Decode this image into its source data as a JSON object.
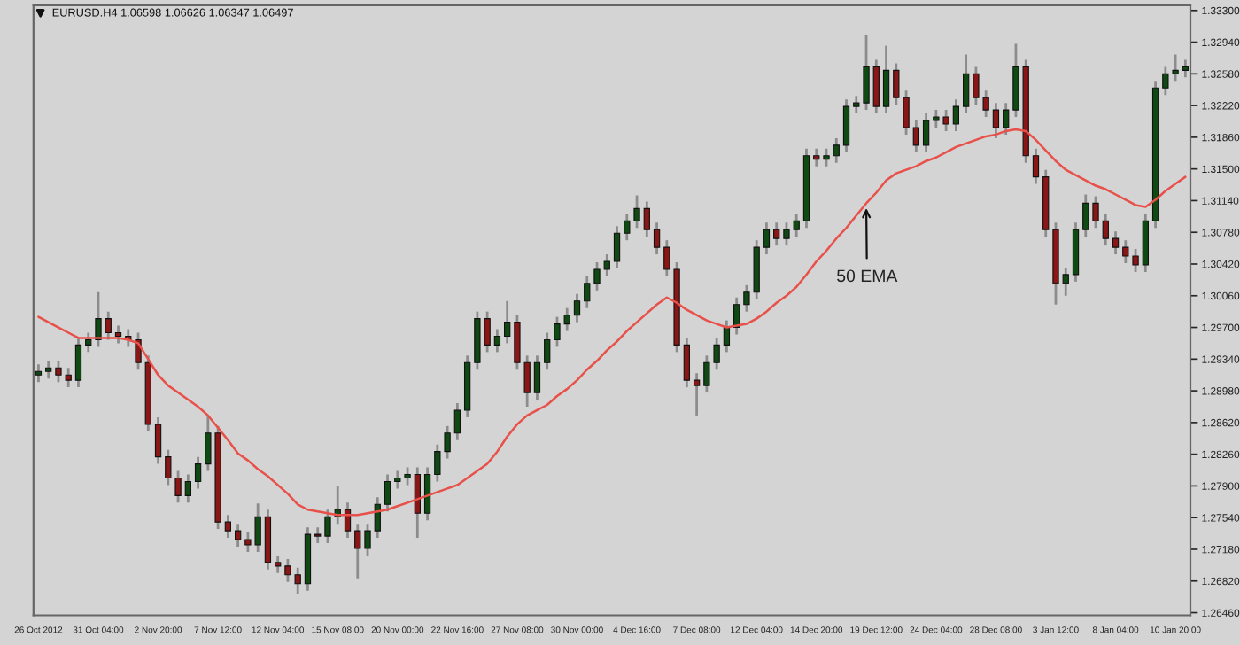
{
  "chart_data": {
    "type": "candlestick",
    "title": "EURUSD.H4 1.06598 1.06626 1.06347 1.06497",
    "categories": [
      "26 Oct 2012",
      null,
      null,
      null,
      null,
      null,
      "31 Oct 04:00",
      null,
      null,
      null,
      null,
      null,
      "2 Nov 20:00",
      null,
      null,
      null,
      null,
      null,
      "7 Nov 12:00",
      null,
      null,
      null,
      null,
      null,
      "12 Nov 04:00",
      null,
      null,
      null,
      null,
      null,
      "15 Nov 08:00",
      null,
      null,
      null,
      null,
      null,
      "20 Nov 00:00",
      null,
      null,
      null,
      null,
      null,
      "22 Nov 16:00",
      null,
      null,
      null,
      null,
      null,
      "27 Nov 08:00",
      null,
      null,
      null,
      null,
      null,
      "30 Nov 00:00",
      null,
      null,
      null,
      null,
      null,
      "4 Dec 16:00",
      null,
      null,
      null,
      null,
      null,
      "7 Dec 08:00",
      null,
      null,
      null,
      null,
      null,
      "12 Dec 04:00",
      null,
      null,
      null,
      null,
      null,
      "14 Dec 20:00",
      null,
      null,
      null,
      null,
      null,
      "19 Dec 12:00",
      null,
      null,
      null,
      null,
      null,
      "24 Dec 04:00",
      null,
      null,
      null,
      null,
      null,
      "28 Dec 08:00",
      null,
      null,
      null,
      null,
      null,
      "3 Jan 12:00",
      null,
      null,
      null,
      null,
      null,
      "8 Jan 04:00",
      null,
      null,
      null,
      null,
      null,
      "10 Jan 20:00",
      null
    ],
    "ohlc": [
      [
        1.2916,
        1.2928,
        1.2908,
        1.292
      ],
      [
        1.292,
        1.2932,
        1.2912,
        1.2924
      ],
      [
        1.2924,
        1.2932,
        1.2908,
        1.2916
      ],
      [
        1.2916,
        1.2924,
        1.2902,
        1.291
      ],
      [
        1.291,
        1.2958,
        1.2902,
        1.295
      ],
      [
        1.295,
        1.2964,
        1.2942,
        1.2956
      ],
      [
        1.2956,
        1.301,
        1.2948,
        1.298
      ],
      [
        1.298,
        1.2988,
        1.2956,
        1.2964
      ],
      [
        1.2964,
        1.2972,
        1.2952,
        1.296
      ],
      [
        1.296,
        1.2968,
        1.2948,
        1.2956
      ],
      [
        1.2956,
        1.2964,
        1.2922,
        1.293
      ],
      [
        1.293,
        1.2938,
        1.2852,
        1.286
      ],
      [
        1.286,
        1.2868,
        1.2815,
        1.2823
      ],
      [
        1.2823,
        1.2831,
        1.2791,
        1.2799
      ],
      [
        1.2799,
        1.2807,
        1.2771,
        1.2779
      ],
      [
        1.2779,
        1.2803,
        1.2771,
        1.2795
      ],
      [
        1.2795,
        1.2823,
        1.2787,
        1.2815
      ],
      [
        1.2815,
        1.287,
        1.2807,
        1.285
      ],
      [
        1.285,
        1.2858,
        1.2741,
        1.2749
      ],
      [
        1.2749,
        1.2757,
        1.2731,
        1.2739
      ],
      [
        1.2739,
        1.2747,
        1.2721,
        1.2729
      ],
      [
        1.2729,
        1.2737,
        1.2715,
        1.2723
      ],
      [
        1.2723,
        1.277,
        1.2715,
        1.2755
      ],
      [
        1.2755,
        1.2763,
        1.2695,
        1.2703
      ],
      [
        1.2703,
        1.2711,
        1.2691,
        1.2699
      ],
      [
        1.2699,
        1.2707,
        1.2681,
        1.2689
      ],
      [
        1.2689,
        1.2697,
        1.2667,
        1.2679
      ],
      [
        1.2679,
        1.2743,
        1.2671,
        1.2735
      ],
      [
        1.2735,
        1.2743,
        1.2725,
        1.2733
      ],
      [
        1.2733,
        1.2763,
        1.2725,
        1.2755
      ],
      [
        1.2755,
        1.279,
        1.2747,
        1.2763
      ],
      [
        1.2763,
        1.2771,
        1.2731,
        1.2739
      ],
      [
        1.2739,
        1.2747,
        1.2685,
        1.2719
      ],
      [
        1.2719,
        1.2747,
        1.2711,
        1.2739
      ],
      [
        1.2739,
        1.2777,
        1.2731,
        1.2769
      ],
      [
        1.2769,
        1.2803,
        1.2761,
        1.2795
      ],
      [
        1.2795,
        1.2807,
        1.2787,
        1.2799
      ],
      [
        1.2799,
        1.2811,
        1.2791,
        1.2803
      ],
      [
        1.2803,
        1.2811,
        1.2731,
        1.2759
      ],
      [
        1.2759,
        1.2811,
        1.2751,
        1.2803
      ],
      [
        1.2803,
        1.2837,
        1.2795,
        1.2829
      ],
      [
        1.2829,
        1.2858,
        1.2821,
        1.285
      ],
      [
        1.285,
        1.2884,
        1.2842,
        1.2876
      ],
      [
        1.2876,
        1.2938,
        1.2868,
        1.293
      ],
      [
        1.293,
        1.2988,
        1.2922,
        1.298
      ],
      [
        1.298,
        1.2988,
        1.2942,
        1.295
      ],
      [
        1.295,
        1.2968,
        1.2942,
        1.296
      ],
      [
        1.296,
        1.3,
        1.2952,
        1.2976
      ],
      [
        1.2976,
        1.2984,
        1.2922,
        1.293
      ],
      [
        1.293,
        1.2938,
        1.288,
        1.2896
      ],
      [
        1.2896,
        1.2938,
        1.2888,
        1.293
      ],
      [
        1.293,
        1.2964,
        1.2922,
        1.2956
      ],
      [
        1.2956,
        1.2982,
        1.2948,
        1.2974
      ],
      [
        1.2974,
        1.2992,
        1.2966,
        1.2984
      ],
      [
        1.2984,
        1.3008,
        1.2976,
        1.3
      ],
      [
        1.3,
        1.3028,
        1.2992,
        1.302
      ],
      [
        1.302,
        1.3044,
        1.3012,
        1.3036
      ],
      [
        1.3036,
        1.3053,
        1.3028,
        1.3045
      ],
      [
        1.3045,
        1.3085,
        1.3037,
        1.3077
      ],
      [
        1.3077,
        1.3099,
        1.3069,
        1.3091
      ],
      [
        1.3091,
        1.312,
        1.3083,
        1.3105
      ],
      [
        1.3105,
        1.3113,
        1.3073,
        1.3081
      ],
      [
        1.3081,
        1.3089,
        1.3053,
        1.3061
      ],
      [
        1.3061,
        1.3069,
        1.3028,
        1.3036
      ],
      [
        1.3036,
        1.3044,
        1.2942,
        1.295
      ],
      [
        1.295,
        1.2958,
        1.2902,
        1.291
      ],
      [
        1.291,
        1.2918,
        1.287,
        1.2904
      ],
      [
        1.2904,
        1.2938,
        1.2896,
        1.293
      ],
      [
        1.293,
        1.2958,
        1.2922,
        1.295
      ],
      [
        1.295,
        1.2978,
        1.2942,
        1.297
      ],
      [
        1.297,
        1.3004,
        1.2962,
        1.2996
      ],
      [
        1.2996,
        1.3018,
        1.2988,
        1.301
      ],
      [
        1.301,
        1.3069,
        1.3002,
        1.3061
      ],
      [
        1.3061,
        1.3089,
        1.3053,
        1.3081
      ],
      [
        1.3081,
        1.3089,
        1.3063,
        1.3071
      ],
      [
        1.3071,
        1.3089,
        1.3063,
        1.3081
      ],
      [
        1.3081,
        1.3099,
        1.3073,
        1.3091
      ],
      [
        1.3091,
        1.3173,
        1.3083,
        1.3165
      ],
      [
        1.3165,
        1.3173,
        1.3153,
        1.3161
      ],
      [
        1.3161,
        1.3173,
        1.3153,
        1.3165
      ],
      [
        1.3165,
        1.3185,
        1.3157,
        1.3177
      ],
      [
        1.3177,
        1.3229,
        1.3169,
        1.3221
      ],
      [
        1.3221,
        1.3233,
        1.3213,
        1.3225
      ],
      [
        1.3225,
        1.3302,
        1.3217,
        1.3266
      ],
      [
        1.3266,
        1.3274,
        1.3213,
        1.3221
      ],
      [
        1.3221,
        1.329,
        1.3213,
        1.3262
      ],
      [
        1.3262,
        1.327,
        1.3223,
        1.3231
      ],
      [
        1.3231,
        1.3239,
        1.3189,
        1.3197
      ],
      [
        1.3197,
        1.3205,
        1.3169,
        1.3177
      ],
      [
        1.3177,
        1.3213,
        1.3169,
        1.3205
      ],
      [
        1.3205,
        1.3217,
        1.3197,
        1.3209
      ],
      [
        1.3209,
        1.3217,
        1.3193,
        1.3201
      ],
      [
        1.3201,
        1.3229,
        1.3193,
        1.3221
      ],
      [
        1.3221,
        1.328,
        1.3213,
        1.3258
      ],
      [
        1.3258,
        1.3266,
        1.3223,
        1.3231
      ],
      [
        1.3231,
        1.3239,
        1.3209,
        1.3217
      ],
      [
        1.3217,
        1.3225,
        1.3185,
        1.3197
      ],
      [
        1.3197,
        1.3225,
        1.3189,
        1.3217
      ],
      [
        1.3217,
        1.3292,
        1.3209,
        1.3266
      ],
      [
        1.3266,
        1.3274,
        1.3157,
        1.3165
      ],
      [
        1.3165,
        1.3173,
        1.3133,
        1.3141
      ],
      [
        1.3141,
        1.3149,
        1.3073,
        1.3081
      ],
      [
        1.3081,
        1.3089,
        1.2996,
        1.302
      ],
      [
        1.302,
        1.3038,
        1.3006,
        1.303
      ],
      [
        1.303,
        1.3089,
        1.3022,
        1.3081
      ],
      [
        1.3081,
        1.3121,
        1.3073,
        1.3111
      ],
      [
        1.3111,
        1.3119,
        1.3083,
        1.3091
      ],
      [
        1.3091,
        1.3099,
        1.3063,
        1.3071
      ],
      [
        1.3071,
        1.3079,
        1.3053,
        1.3061
      ],
      [
        1.3061,
        1.3069,
        1.3043,
        1.3051
      ],
      [
        1.3051,
        1.3059,
        1.3033,
        1.3041
      ],
      [
        1.3041,
        1.3099,
        1.3033,
        1.3091
      ],
      [
        1.3091,
        1.325,
        1.3083,
        1.3242
      ],
      [
        1.3242,
        1.3266,
        1.3234,
        1.3258
      ],
      [
        1.3258,
        1.328,
        1.325,
        1.3262
      ],
      [
        1.3262,
        1.3274,
        1.3254,
        1.3266
      ]
    ],
    "series": [
      {
        "type": "line",
        "name": "50 EMA",
        "color": "#e8504a",
        "values": [
          1.2982,
          1.2976,
          1.297,
          1.2964,
          1.2958,
          1.2958,
          1.2958,
          1.2958,
          1.2958,
          1.2956,
          1.2952,
          1.2934,
          1.2916,
          1.2904,
          1.2896,
          1.2888,
          1.288,
          1.287,
          1.2856,
          1.2842,
          1.2827,
          1.2819,
          1.2809,
          1.2801,
          1.2791,
          1.2781,
          1.2769,
          1.2763,
          1.2761,
          1.2759,
          1.2757,
          1.2757,
          1.2757,
          1.2759,
          1.2761,
          1.2763,
          1.2767,
          1.2771,
          1.2775,
          1.2779,
          1.2783,
          1.2787,
          1.2791,
          1.2799,
          1.2807,
          1.2815,
          1.2829,
          1.2846,
          1.286,
          1.287,
          1.2876,
          1.2882,
          1.2892,
          1.29,
          1.291,
          1.2922,
          1.2932,
          1.2944,
          1.2954,
          1.2966,
          1.2976,
          1.2986,
          1.2996,
          1.3004,
          1.2998,
          1.299,
          1.2984,
          1.2978,
          1.2974,
          1.297,
          1.2972,
          1.2974,
          1.298,
          1.2988,
          1.2998,
          1.3006,
          1.3016,
          1.303,
          1.3045,
          1.3057,
          1.3071,
          1.3083,
          1.3097,
          1.3111,
          1.3123,
          1.3137,
          1.3145,
          1.3149,
          1.3153,
          1.3159,
          1.3163,
          1.3169,
          1.3175,
          1.3179,
          1.3183,
          1.3187,
          1.3189,
          1.3193,
          1.3195,
          1.3193,
          1.3183,
          1.3171,
          1.3159,
          1.3149,
          1.3143,
          1.3137,
          1.3131,
          1.3127,
          1.3121,
          1.3115,
          1.3109,
          1.3107,
          1.3115,
          1.3125,
          1.3133,
          1.3141
        ]
      }
    ],
    "ylim": [
      1.2643,
      1.3336
    ],
    "yticks": [
      {
        "value": 1.333,
        "label": "1.33300"
      },
      {
        "value": 1.3294,
        "label": "1.32940"
      },
      {
        "value": 1.3258,
        "label": "1.32580"
      },
      {
        "value": 1.3222,
        "label": "1.32220"
      },
      {
        "value": 1.3186,
        "label": "1.31860"
      },
      {
        "value": 1.315,
        "label": "1.31500"
      },
      {
        "value": 1.3114,
        "label": "1.31140"
      },
      {
        "value": 1.3078,
        "label": "1.30780"
      },
      {
        "value": 1.3042,
        "label": "1.30420"
      },
      {
        "value": 1.3006,
        "label": "1.30060"
      },
      {
        "value": 1.297,
        "label": "1.29700"
      },
      {
        "value": 1.2934,
        "label": "1.29340"
      },
      {
        "value": 1.2898,
        "label": "1.28980"
      },
      {
        "value": 1.2862,
        "label": "1.28620"
      },
      {
        "value": 1.2826,
        "label": "1.28260"
      },
      {
        "value": 1.279,
        "label": "1.27900"
      },
      {
        "value": 1.2754,
        "label": "1.27540"
      },
      {
        "value": 1.2718,
        "label": "1.27180"
      },
      {
        "value": 1.2682,
        "label": "1.26820"
      },
      {
        "value": 1.2646,
        "label": "1.26460"
      }
    ],
    "grid": false
  }
}
